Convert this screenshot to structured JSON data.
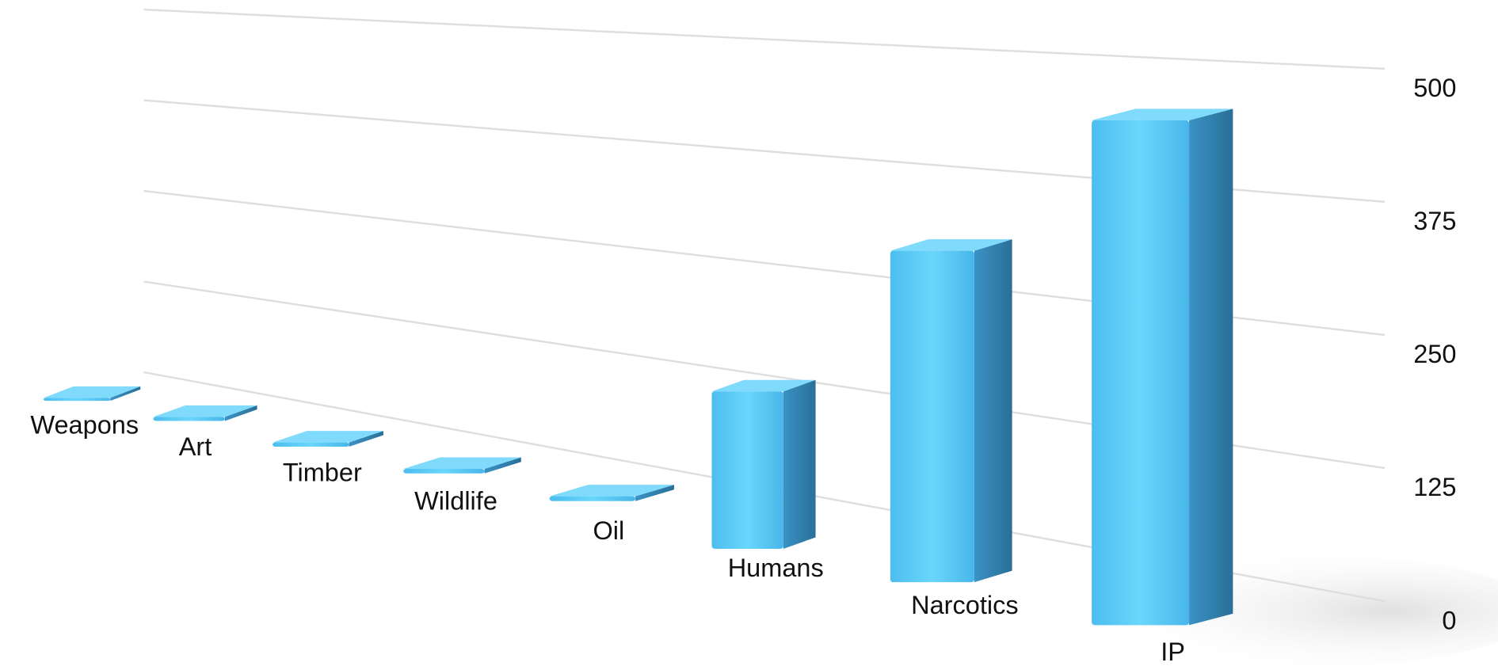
{
  "chart_data": {
    "type": "bar",
    "categories": [
      "Weapons",
      "Art",
      "Timber",
      "Wildlife",
      "Oil",
      "Humans",
      "Narcotics",
      "IP"
    ],
    "values": [
      4,
      5,
      5,
      5,
      5,
      195,
      350,
      460
    ],
    "color": "#4fc3f7",
    "ylim": [
      0,
      500
    ],
    "yticks": [
      0,
      125,
      250,
      375,
      500
    ],
    "grid": true
  }
}
